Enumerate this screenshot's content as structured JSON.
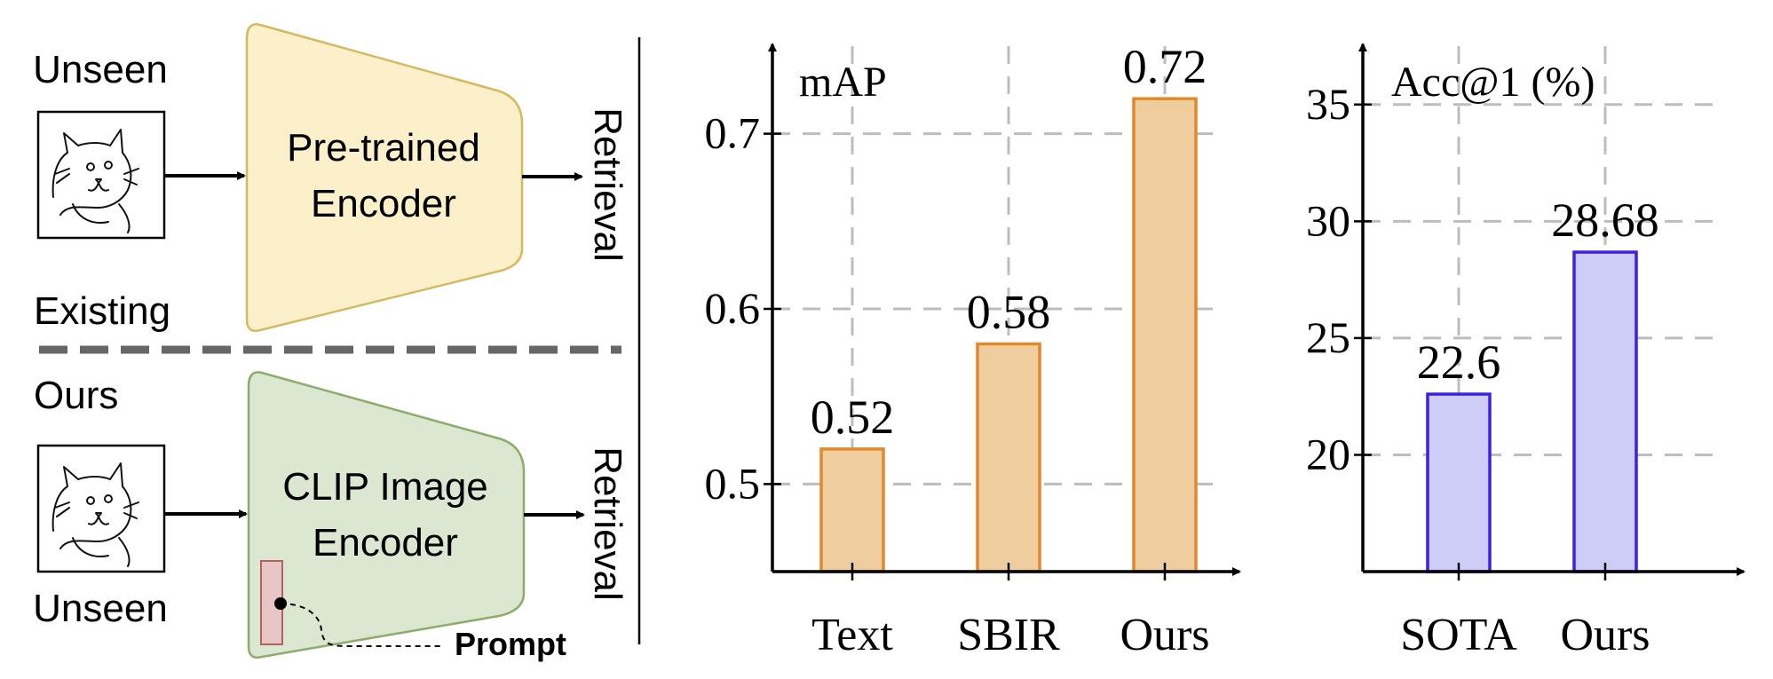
{
  "diagram": {
    "existing": {
      "input_label": "Unseen",
      "section_label": "Existing",
      "encoder_label_line1": "Pre-trained",
      "encoder_label_line2": "Encoder",
      "output_label": "Retrieval",
      "encoder_fill": "#fbf0c9",
      "encoder_stroke": "#d6b860"
    },
    "ours": {
      "section_label": "Ours",
      "input_label": "Unseen",
      "encoder_label_line1": "CLIP Image",
      "encoder_label_line2": "Encoder",
      "output_label": "Retrieval",
      "prompt_label": "Prompt",
      "encoder_fill": "#dbe7d1",
      "encoder_stroke": "#8cad6a",
      "prompt_fill": "#e9c5c5",
      "prompt_stroke": "#b36060"
    },
    "image_icon": "cat-sketch-icon"
  },
  "chart_data": [
    {
      "type": "bar",
      "ylabel": "mAP",
      "categories": [
        "Text",
        "SBIR",
        "Ours"
      ],
      "values": [
        0.52,
        0.58,
        0.72
      ],
      "value_labels": [
        "0.52",
        "0.58",
        "0.72"
      ],
      "yticks": [
        0.5,
        0.6,
        0.7
      ],
      "ytick_labels": [
        "0.5",
        "0.6",
        "0.7"
      ],
      "ylim": [
        0.45,
        0.75
      ],
      "grid": true,
      "bar_fill": "#f0cd9e",
      "bar_stroke": "#e3892c"
    },
    {
      "type": "bar",
      "ylabel": "Acc@1 (%)",
      "categories": [
        "SOTA",
        "Ours"
      ],
      "values": [
        22.6,
        28.68
      ],
      "value_labels": [
        "22.6",
        "28.68"
      ],
      "yticks": [
        20,
        25,
        30,
        35
      ],
      "ytick_labels": [
        "20",
        "25",
        "30",
        "35"
      ],
      "ylim": [
        15,
        37.5
      ],
      "grid": true,
      "bar_fill": "#cdcdf7",
      "bar_stroke": "#3b22dd"
    }
  ]
}
